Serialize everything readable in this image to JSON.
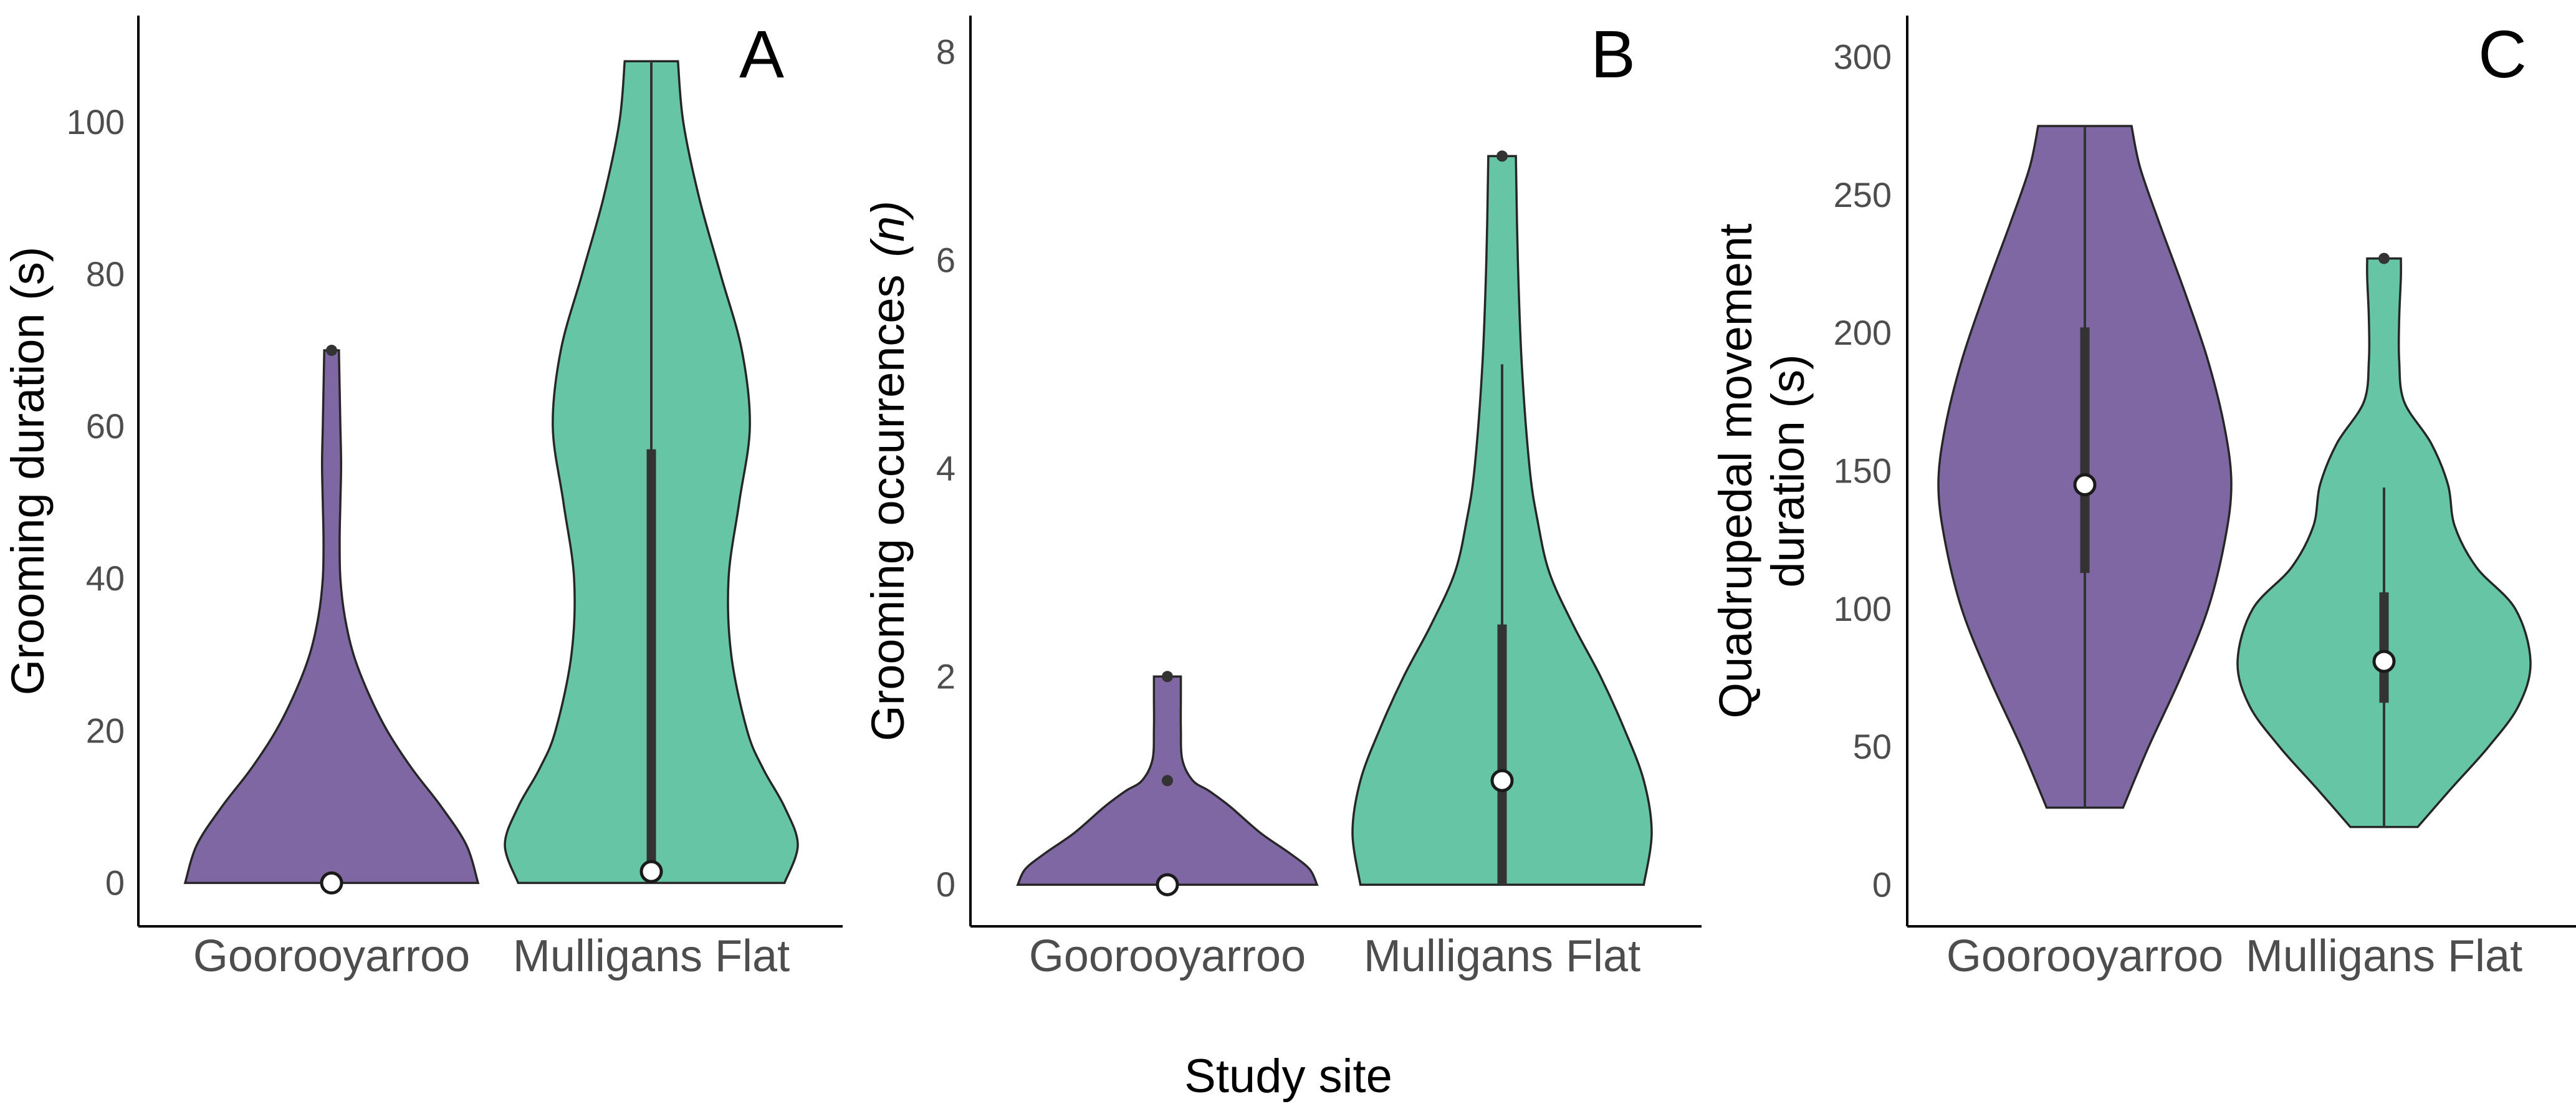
{
  "chart_data": [
    {
      "type": "violin",
      "panel": "A",
      "ylabel": "Grooming duration (s)",
      "ylim": [
        -5.7,
        114
      ],
      "yticks": [
        0,
        20,
        40,
        60,
        80,
        100
      ],
      "categories": [
        "Goorooyarroo",
        "Mulligans Flat"
      ],
      "groups": [
        {
          "name": "Goorooyarroo",
          "color": "#7f67a3",
          "min": 0,
          "max": 70,
          "median": 0,
          "q1": 0,
          "q3": 0,
          "whisker_low": 0,
          "whisker_high": 0,
          "outliers": [
            70
          ],
          "density": [
            [
              0,
              1.0
            ],
            [
              5,
              0.92
            ],
            [
              10,
              0.75
            ],
            [
              15,
              0.55
            ],
            [
              20,
              0.38
            ],
            [
              25,
              0.25
            ],
            [
              30,
              0.15
            ],
            [
              35,
              0.09
            ],
            [
              40,
              0.06
            ],
            [
              45,
              0.055
            ],
            [
              50,
              0.06
            ],
            [
              55,
              0.065
            ],
            [
              60,
              0.06
            ],
            [
              65,
              0.055
            ],
            [
              70,
              0.05
            ]
          ]
        },
        {
          "name": "Mulligans Flat",
          "color": "#66c5a4",
          "min": 0,
          "max": 108,
          "median": 1.5,
          "q1": 0,
          "q3": 57,
          "whisker_low": 0,
          "whisker_high": 108,
          "outliers": [],
          "density": [
            [
              0,
              0.5
            ],
            [
              5,
              0.55
            ],
            [
              10,
              0.5
            ],
            [
              15,
              0.42
            ],
            [
              20,
              0.36
            ],
            [
              30,
              0.3
            ],
            [
              40,
              0.29
            ],
            [
              50,
              0.33
            ],
            [
              60,
              0.37
            ],
            [
              70,
              0.34
            ],
            [
              80,
              0.26
            ],
            [
              90,
              0.18
            ],
            [
              100,
              0.12
            ],
            [
              108,
              0.1
            ]
          ]
        }
      ]
    },
    {
      "type": "violin",
      "panel": "B",
      "ylabel": "Grooming occurrences",
      "ylabel_italic": "(n)",
      "ylim": [
        -0.4,
        8.35
      ],
      "yticks": [
        0,
        2,
        4,
        6,
        8
      ],
      "categories": [
        "Goorooyarroo",
        "Mulligans Flat"
      ],
      "groups": [
        {
          "name": "Goorooyarroo",
          "color": "#7f67a3",
          "min": 0,
          "max": 2,
          "median": 0,
          "q1": 0,
          "q3": 0,
          "whisker_low": 0,
          "whisker_high": 0,
          "outliers": [
            1,
            2
          ],
          "density": [
            [
              0,
              1.0
            ],
            [
              0.15,
              0.95
            ],
            [
              0.3,
              0.82
            ],
            [
              0.5,
              0.62
            ],
            [
              0.75,
              0.42
            ],
            [
              0.9,
              0.28
            ],
            [
              1.0,
              0.17
            ],
            [
              1.2,
              0.1
            ],
            [
              1.5,
              0.09
            ],
            [
              1.8,
              0.09
            ],
            [
              2.0,
              0.09
            ]
          ]
        },
        {
          "name": "Mulligans Flat",
          "color": "#66c5a4",
          "min": 0,
          "max": 7,
          "median": 1,
          "q1": 0,
          "q3": 2.5,
          "whisker_low": 0,
          "whisker_high": 5,
          "outliers": [
            7
          ],
          "density": [
            [
              0,
              0.36
            ],
            [
              0.5,
              0.38
            ],
            [
              1,
              0.36
            ],
            [
              1.5,
              0.31
            ],
            [
              2,
              0.25
            ],
            [
              2.5,
              0.18
            ],
            [
              3,
              0.12
            ],
            [
              3.5,
              0.09
            ],
            [
              4,
              0.07
            ],
            [
              5,
              0.05
            ],
            [
              6,
              0.04
            ],
            [
              7,
              0.035
            ]
          ]
        }
      ]
    },
    {
      "type": "violin",
      "panel": "C",
      "ylabel": "Quadrupedal movement duration (s)",
      "ylabel_lines": [
        "Quadrupedal movement",
        "duration (s)"
      ],
      "ylim": [
        -15,
        315
      ],
      "yticks": [
        0,
        50,
        100,
        150,
        200,
        250,
        300
      ],
      "categories": [
        "Goorooyarroo",
        "Mulligans Flat"
      ],
      "groups": [
        {
          "name": "Goorooyarroo",
          "color": "#7f67a3",
          "min": 28,
          "max": 275,
          "median": 145,
          "q1": 113,
          "q3": 202,
          "whisker_low": 28,
          "whisker_high": 275,
          "outliers": [],
          "density": [
            [
              28,
              0.18
            ],
            [
              50,
              0.3
            ],
            [
              75,
              0.45
            ],
            [
              100,
              0.58
            ],
            [
              125,
              0.66
            ],
            [
              145,
              0.69
            ],
            [
              165,
              0.66
            ],
            [
              190,
              0.58
            ],
            [
              215,
              0.47
            ],
            [
              240,
              0.35
            ],
            [
              260,
              0.26
            ],
            [
              275,
              0.22
            ]
          ]
        },
        {
          "name": "Mulligans Flat",
          "color": "#66c5a4",
          "min": 21,
          "max": 227,
          "median": 81,
          "q1": 66,
          "q3": 106,
          "whisker_low": 21,
          "whisker_high": 144,
          "outliers": [
            227
          ],
          "density": [
            [
              21,
              0.2
            ],
            [
              35,
              0.4
            ],
            [
              50,
              0.62
            ],
            [
              65,
              0.8
            ],
            [
              81,
              0.87
            ],
            [
              100,
              0.78
            ],
            [
              115,
              0.55
            ],
            [
              130,
              0.42
            ],
            [
              145,
              0.38
            ],
            [
              160,
              0.28
            ],
            [
              175,
              0.12
            ],
            [
              190,
              0.09
            ],
            [
              205,
              0.09
            ],
            [
              220,
              0.1
            ],
            [
              227,
              0.1
            ]
          ]
        }
      ]
    }
  ],
  "xlabel": "Study site"
}
